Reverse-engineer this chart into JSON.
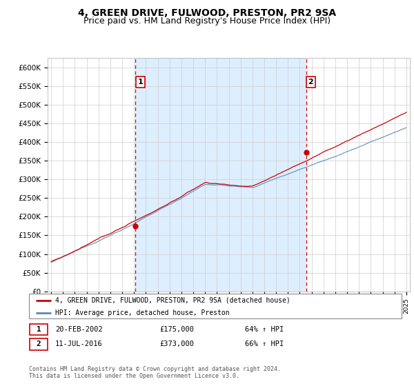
{
  "title": "4, GREEN DRIVE, FULWOOD, PRESTON, PR2 9SA",
  "subtitle": "Price paid vs. HM Land Registry's House Price Index (HPI)",
  "ylim": [
    0,
    625000
  ],
  "yticks": [
    0,
    50000,
    100000,
    150000,
    200000,
    250000,
    300000,
    350000,
    400000,
    450000,
    500000,
    550000,
    600000
  ],
  "ytick_labels": [
    "£0",
    "£50K",
    "£100K",
    "£150K",
    "£200K",
    "£250K",
    "£300K",
    "£350K",
    "£400K",
    "£450K",
    "£500K",
    "£550K",
    "£600K"
  ],
  "sale1": {
    "date": "20-FEB-2002",
    "price": 175000,
    "label": "1",
    "hpi_pct": "64% ↑ HPI"
  },
  "sale2": {
    "date": "11-JUL-2016",
    "price": 373000,
    "label": "2",
    "hpi_pct": "66% ↑ HPI"
  },
  "sale1_x": 2002.13,
  "sale2_x": 2016.53,
  "red_line_color": "#cc0000",
  "blue_line_color": "#5588bb",
  "fill_color": "#ddeeff",
  "vline_color": "#cc0000",
  "legend_label_red": "4, GREEN DRIVE, FULWOOD, PRESTON, PR2 9SA (detached house)",
  "legend_label_blue": "HPI: Average price, detached house, Preston",
  "footer": "Contains HM Land Registry data © Crown copyright and database right 2024.\nThis data is licensed under the Open Government Licence v3.0.",
  "title_fontsize": 10,
  "subtitle_fontsize": 9,
  "bg_color": "#f0f4ff"
}
